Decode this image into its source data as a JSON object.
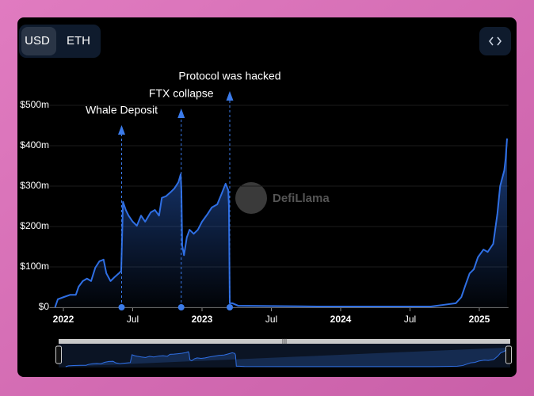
{
  "ui": {
    "currency_options": [
      "USD",
      "ETH"
    ],
    "selected_currency": "USD"
  },
  "chart_data": {
    "type": "line",
    "watermark": "DefiLlama",
    "x": [
      2021.94,
      2021.96,
      2022.0,
      2022.05,
      2022.09,
      2022.11,
      2022.14,
      2022.17,
      2022.2,
      2022.23,
      2022.26,
      2022.29,
      2022.31,
      2022.34,
      2022.37,
      2022.4,
      2022.417,
      2022.43,
      2022.45,
      2022.47,
      2022.5,
      2022.53,
      2022.56,
      2022.59,
      2022.63,
      2022.66,
      2022.69,
      2022.71,
      2022.74,
      2022.77,
      2022.8,
      2022.83,
      2022.846,
      2022.851,
      2022.857,
      2022.87,
      2022.89,
      2022.91,
      2022.94,
      2022.97,
      2023.0,
      2023.04,
      2023.07,
      2023.11,
      2023.14,
      2023.17,
      2023.189,
      2023.194,
      2023.2,
      2023.22,
      2023.26,
      2023.83,
      2024.65,
      2024.74,
      2024.83,
      2024.87,
      2024.9,
      2024.93,
      2024.96,
      2024.99,
      2025.03,
      2025.06,
      2025.1,
      2025.13,
      2025.15,
      2025.18,
      2025.19,
      2025.2
    ],
    "series": [
      {
        "color": "#2f6fe4",
        "values": [
          0,
          20,
          25,
          31,
          31,
          51,
          65,
          71,
          65,
          98,
          114,
          118,
          84,
          65,
          75,
          84,
          90,
          261,
          241,
          227,
          212,
          202,
          227,
          212,
          235,
          241,
          227,
          271,
          275,
          284,
          294,
          310,
          329,
          290,
          153,
          129,
          173,
          192,
          182,
          192,
          212,
          231,
          247,
          255,
          280,
          306,
          290,
          251,
          10,
          10,
          4,
          2,
          2,
          6,
          10,
          25,
          55,
          84,
          94,
          124,
          143,
          137,
          157,
          231,
          300,
          339,
          369,
          418
        ]
      }
    ],
    "xlim": [
      2021.9,
      2025.21
    ],
    "xticks": [
      {
        "value": 2022,
        "label": "2022"
      },
      {
        "value": 2022.5,
        "label": "Jul"
      },
      {
        "value": 2023,
        "label": "2023"
      },
      {
        "value": 2023.5,
        "label": "Jul"
      },
      {
        "value": 2024,
        "label": "2024"
      },
      {
        "value": 2024.5,
        "label": "Jul"
      },
      {
        "value": 2025,
        "label": "2025"
      }
    ],
    "ylim": [
      0,
      520
    ],
    "yticks": [
      {
        "value": 0,
        "label": "$0"
      },
      {
        "value": 100,
        "label": "$100m"
      },
      {
        "value": 200,
        "label": "$200m"
      },
      {
        "value": 300,
        "label": "$300m"
      },
      {
        "value": 400,
        "label": "$400m"
      },
      {
        "value": 500,
        "label": "$500m"
      }
    ],
    "grid": true,
    "annotations": [
      {
        "x": 2022.42,
        "text": "Whale Deposit"
      },
      {
        "x": 2022.85,
        "text": "FTX collapse"
      },
      {
        "x": 2023.2,
        "text": "Protocol was hacked"
      }
    ]
  }
}
